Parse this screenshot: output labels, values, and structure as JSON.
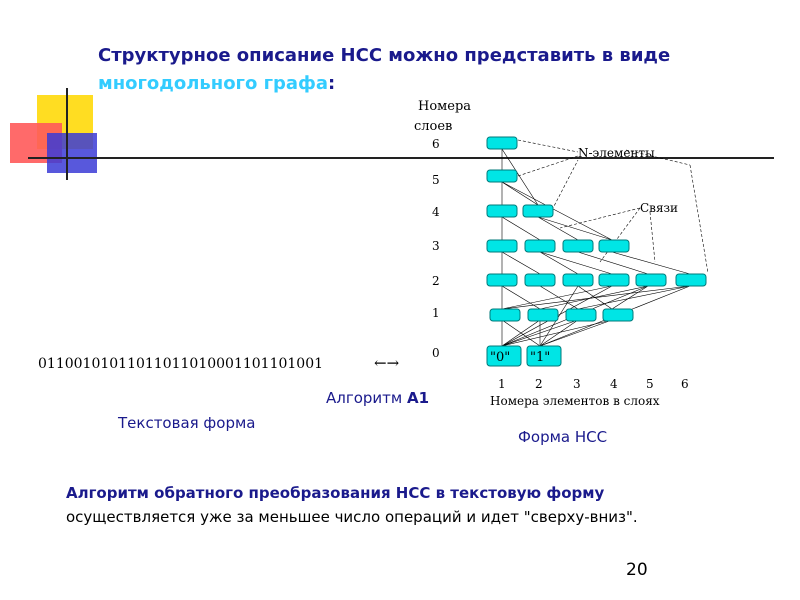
{
  "title": {
    "line1": "Структурное описание НСС можно представить в виде",
    "line2_highlight": "многодольного графа",
    "line2_colon": ":"
  },
  "graph": {
    "layers_heading_line1": "Номера",
    "layers_heading_line2": "слоев",
    "layer_numbers": [
      "6",
      "5",
      "4",
      "3",
      "2",
      "1",
      "0"
    ],
    "element_numbers": [
      "1",
      "2",
      "3",
      "4",
      "5",
      "6"
    ],
    "x_axis_label": "Номера элементов в слоях",
    "annotation_elements": "N-элементы",
    "annotation_links": "Связи",
    "terminal_nodes": [
      "\"0\"",
      "\"1\""
    ],
    "colors": {
      "node_fill": "#00e5e5",
      "node_stroke": "#007a7a",
      "edge": "#000000"
    }
  },
  "binary_string": "0110010101101101101000110110100 1",
  "binary_text": "01100101011011011010001101101001",
  "arrow": "←→",
  "algorithm_label": "Алгоритм ",
  "algorithm_name": "А1",
  "text_form_label": "Текстовая форма",
  "nss_form_label": "Форма  НСС",
  "bottom": {
    "line1": "Алгоритм обратного преобразования НСС в текстовую форму",
    "line2": "осуществляется уже за меньшее число операций и идет \"сверху-вниз\"."
  },
  "page_number": "20",
  "colors": {
    "title": "#1a1a8c",
    "highlight": "#33ccff",
    "deco_yellow": "#ffdd22",
    "deco_red": "#ff4444",
    "deco_blue": "#3333cc"
  }
}
